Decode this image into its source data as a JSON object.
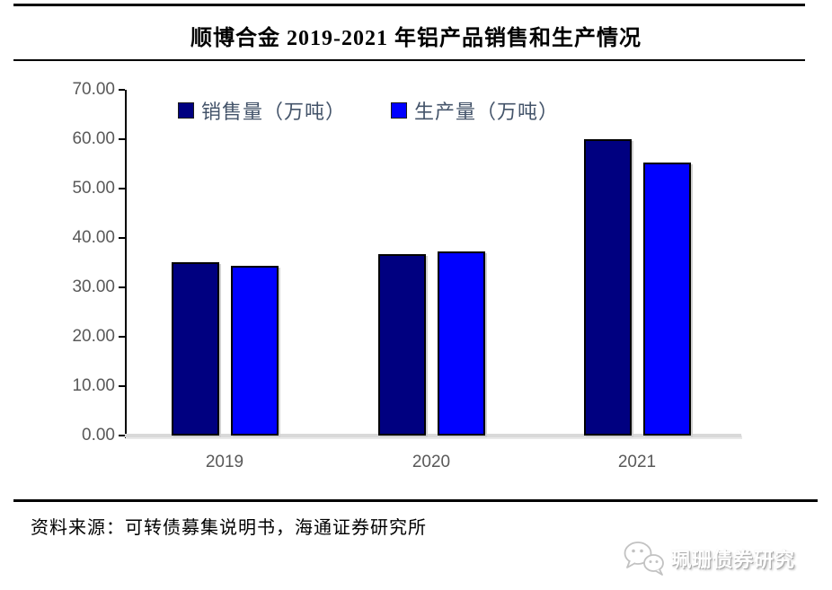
{
  "title": "顺博合金 2019-2021 年铝产品销售和生产情况",
  "chart_data": {
    "type": "bar",
    "categories": [
      "2019",
      "2020",
      "2021"
    ],
    "series": [
      {
        "name": "销售量（万吨）",
        "color": "#000080",
        "values": [
          35.1,
          36.8,
          60.0
        ]
      },
      {
        "name": "生产量（万吨）",
        "color": "#0000FF",
        "values": [
          34.3,
          37.2,
          55.2
        ]
      }
    ],
    "title": "顺博合金 2019-2021 年铝产品销售和生产情况",
    "xlabel": "",
    "ylabel": "",
    "ylim": [
      0,
      70
    ],
    "ytick_step": 10,
    "ytick_labels": [
      "70.00",
      "60.00",
      "50.00",
      "40.00",
      "30.00",
      "20.00",
      "10.00",
      "0.00"
    ],
    "grid": false,
    "legend_position": "top-center"
  },
  "source": "资料来源：可转债募集说明书，海通证券研究所",
  "watermark": {
    "text": "珮珊债券研究",
    "icon": "wechat-bubbles-icon"
  },
  "colors": {
    "sales_bar": "#000080",
    "production_bar": "#0000FF",
    "bar_border": "#000000",
    "axis_label": "#595959",
    "legend_text": "#44546A",
    "baseline": "#D9D9D9",
    "rule": "#000000"
  }
}
